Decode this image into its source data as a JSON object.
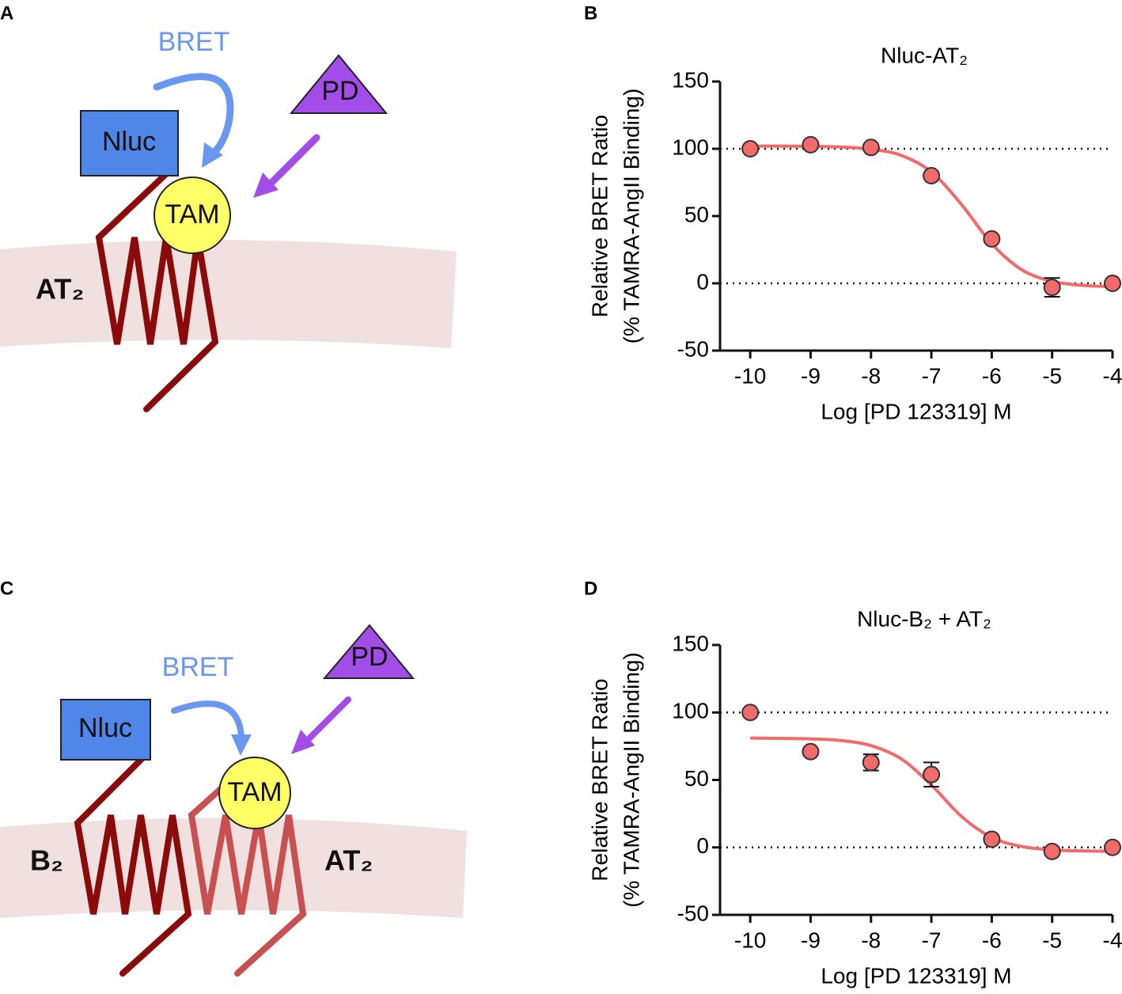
{
  "diagrams": [
    {
      "panel": "A",
      "bret": "BRET",
      "nluc": "Nluc",
      "pd": "PD",
      "tam": "TAM",
      "receptor": "AT₂"
    },
    {
      "panel": "C",
      "bret": "BRET",
      "nluc": "Nluc",
      "pd": "PD",
      "tam": "TAM",
      "receptor": "AT₂",
      "receptor2": "B₂"
    }
  ],
  "chart_data": [
    {
      "panel": "B",
      "type": "scatter",
      "title": "Nluc-AT₂",
      "xlabel": "Log [PD 123319] M",
      "ylabel": [
        "Relative BRET Ratio",
        "(% TAMRA-AngII Binding)"
      ],
      "xlim": [
        -10.5,
        -4
      ],
      "ylim": [
        -50,
        150
      ],
      "xticks": [
        -10,
        -9,
        -8,
        -7,
        -6,
        -5,
        -4
      ],
      "yticks": [
        -50,
        0,
        50,
        100,
        150
      ],
      "ref_lines": [
        0,
        100
      ],
      "color": "#f26b6b",
      "x": [
        -10,
        -9,
        -8,
        -7,
        -6,
        -5,
        -4
      ],
      "values": [
        100,
        103,
        101,
        80,
        33,
        -3,
        0
      ],
      "errors": [
        null,
        null,
        null,
        null,
        null,
        7,
        null
      ],
      "fit": {
        "color": "#f26b6b",
        "x": [
          -10,
          -9.5,
          -9,
          -8.5,
          -8,
          -7.5,
          -7,
          -6.5,
          -6,
          -5.5,
          -5,
          -4.5,
          -4
        ],
        "values": [
          102,
          102,
          101.8,
          101.3,
          99.7,
          95.1,
          82.8,
          58.5,
          29.4,
          10.0,
          1.5,
          -1.5,
          -2.5
        ]
      }
    },
    {
      "panel": "D",
      "type": "scatter",
      "title": "Nluc-B₂ + AT₂",
      "xlabel": "Log [PD 123319] M",
      "ylabel": [
        "Relative BRET Ratio",
        "(% TAMRA-AngII Binding)"
      ],
      "xlim": [
        -10.5,
        -4
      ],
      "ylim": [
        -50,
        150
      ],
      "xticks": [
        -10,
        -9,
        -8,
        -7,
        -6,
        -5,
        -4
      ],
      "yticks": [
        -50,
        0,
        50,
        100,
        150
      ],
      "ref_lines": [
        0,
        100
      ],
      "color": "#f26b6b",
      "x": [
        -10,
        -9,
        -8,
        -7,
        -6,
        -5,
        -4
      ],
      "values": [
        100,
        71,
        63,
        54,
        6,
        -3,
        0
      ],
      "errors": [
        null,
        null,
        6,
        9,
        null,
        null,
        null
      ],
      "fit": {
        "color": "#f26b6b",
        "x": [
          -10,
          -9.5,
          -9,
          -8.5,
          -8,
          -7.5,
          -7,
          -6.5,
          -6,
          -5.5,
          -5,
          -4.5,
          -4
        ],
        "values": [
          81,
          80.8,
          80.4,
          79.2,
          75.4,
          65.6,
          46.2,
          22.9,
          7.4,
          0.6,
          -1.8,
          -2.6,
          -2.9
        ]
      }
    }
  ]
}
